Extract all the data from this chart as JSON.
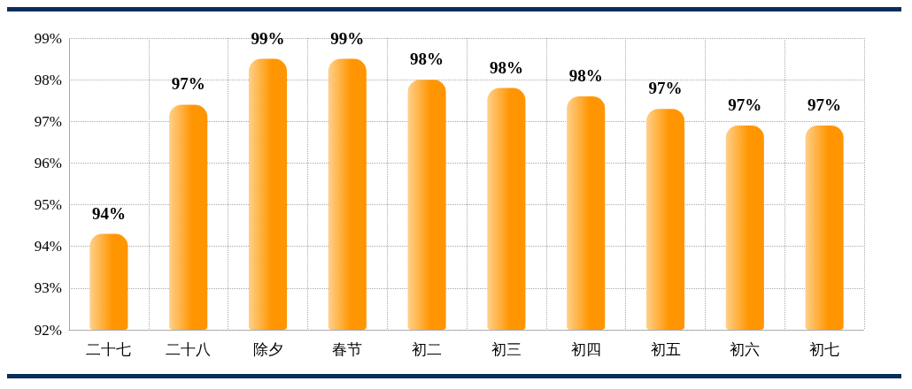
{
  "chart_data": {
    "type": "bar",
    "categories": [
      "二十七",
      "二十八",
      "除夕",
      "春节",
      "初二",
      "初三",
      "初四",
      "初五",
      "初六",
      "初七"
    ],
    "values": [
      94.3,
      97.4,
      98.5,
      98.5,
      98.0,
      97.8,
      97.6,
      97.3,
      96.9,
      96.9
    ],
    "value_labels": [
      "94%",
      "97%",
      "99%",
      "99%",
      "98%",
      "98%",
      "98%",
      "97%",
      "97%",
      "97%"
    ],
    "color": "#ff9500",
    "ylim": [
      92,
      99
    ],
    "yticks": [
      {
        "value": 92,
        "label": "92%"
      },
      {
        "value": 93,
        "label": "93%"
      },
      {
        "value": 94,
        "label": "94%"
      },
      {
        "value": 95,
        "label": "95%"
      },
      {
        "value": 96,
        "label": "96%"
      },
      {
        "value": 97,
        "label": "97%"
      },
      {
        "value": 98,
        "label": "98%"
      },
      {
        "value": 99,
        "label": "99%"
      }
    ],
    "grid": true
  }
}
